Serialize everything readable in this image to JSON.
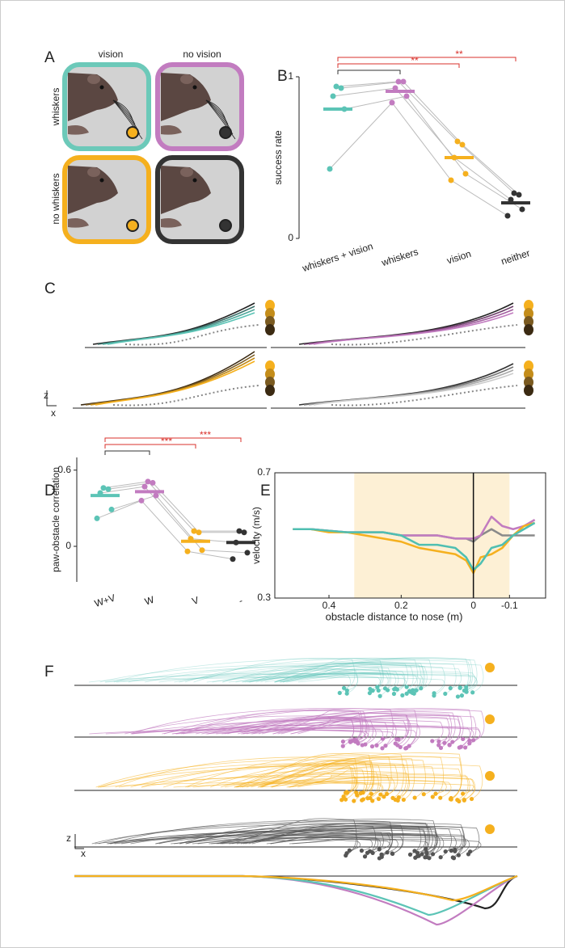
{
  "panel_labels": [
    "A",
    "B",
    "C",
    "D",
    "E",
    "F"
  ],
  "panel_a": {
    "columns": [
      "vision",
      "no vision"
    ],
    "rows": [
      "whiskers",
      "no whiskers"
    ]
  },
  "panel_c": {
    "z": "z",
    "x": "x"
  },
  "panel_f": {
    "z": "z",
    "x": "x"
  },
  "chart_data": [
    {
      "type": "strip",
      "ylabel": "success rate",
      "categories": [
        "whiskers + vision",
        "whiskers",
        "vision",
        "neither"
      ],
      "colors": [
        "#5cc4b6",
        "#c27cc0",
        "#f5b01e",
        "#333333"
      ],
      "means": [
        0.8,
        0.91,
        0.5,
        0.22
      ],
      "series": [
        {
          "values": [
            0.94,
            0.97,
            0.6,
            0.28
          ]
        },
        {
          "values": [
            0.93,
            0.97,
            0.58,
            0.27
          ]
        },
        {
          "values": [
            0.88,
            0.93,
            0.5,
            0.24
          ]
        },
        {
          "values": [
            0.8,
            0.88,
            0.4,
            0.18
          ]
        },
        {
          "values": [
            0.43,
            0.84,
            0.36,
            0.14
          ]
        }
      ],
      "ylim": [
        0,
        1
      ],
      "yticks": [
        0,
        1
      ],
      "brackets": [
        {
          "from": 0,
          "to": 1,
          "color": "#333333"
        },
        {
          "from": 0,
          "to": 2,
          "color": "#d9312b",
          "label": "**"
        },
        {
          "from": 0,
          "to": 3,
          "color": "#d9312b",
          "label": "**"
        }
      ]
    },
    {
      "type": "strip",
      "ylabel": "paw-obstacle correlation",
      "categories": [
        "W+V",
        "W",
        "V",
        "-"
      ],
      "colors": [
        "#5cc4b6",
        "#c27cc0",
        "#f5b01e",
        "#333333"
      ],
      "means": [
        0.4,
        0.43,
        0.04,
        0.03
      ],
      "series": [
        {
          "values": [
            0.46,
            0.51,
            0.12,
            0.12
          ]
        },
        {
          "values": [
            0.45,
            0.5,
            0.11,
            0.11
          ]
        },
        {
          "values": [
            0.42,
            0.47,
            0.06,
            0.03
          ]
        },
        {
          "values": [
            0.29,
            0.4,
            -0.03,
            -0.05
          ]
        },
        {
          "values": [
            0.22,
            0.36,
            -0.04,
            -0.1
          ]
        }
      ],
      "ylim": [
        -0.28,
        0.7
      ],
      "yticks": [
        0,
        0.6
      ],
      "brackets": [
        {
          "from": 0,
          "to": 1,
          "color": "#333333"
        },
        {
          "from": 0,
          "to": 2,
          "color": "#d9312b",
          "label": "***"
        },
        {
          "from": 0,
          "to": 3,
          "color": "#d9312b",
          "label": "***"
        }
      ]
    },
    {
      "type": "line",
      "xlabel": "obstacle distance to nose (m)",
      "ylabel": "velocity (m/s)",
      "x": [
        0.5,
        0.45,
        0.4,
        0.35,
        0.3,
        0.25,
        0.2,
        0.15,
        0.1,
        0.05,
        0.02,
        0,
        -0.02,
        -0.05,
        -0.08,
        -0.11,
        -0.14,
        -0.17
      ],
      "series": [
        {
          "color": "#8a8a8a",
          "values": [
            0.52,
            0.52,
            0.515,
            0.51,
            0.51,
            0.51,
            0.5,
            0.5,
            0.5,
            0.49,
            0.49,
            0.48,
            0.5,
            0.52,
            0.5,
            0.5,
            0.5,
            0.5
          ]
        },
        {
          "color": "#c27cc0",
          "values": [
            0.52,
            0.52,
            0.515,
            0.51,
            0.51,
            0.51,
            0.5,
            0.5,
            0.5,
            0.49,
            0.49,
            0.49,
            0.5,
            0.56,
            0.53,
            0.52,
            0.53,
            0.55
          ]
        },
        {
          "color": "#f5b01e",
          "values": [
            0.52,
            0.52,
            0.51,
            0.51,
            0.5,
            0.49,
            0.48,
            0.46,
            0.45,
            0.44,
            0.42,
            0.38,
            0.43,
            0.44,
            0.46,
            0.5,
            0.53,
            0.54
          ]
        },
        {
          "color": "#4fbfb2",
          "values": [
            0.52,
            0.52,
            0.515,
            0.51,
            0.51,
            0.51,
            0.5,
            0.47,
            0.47,
            0.46,
            0.43,
            0.39,
            0.41,
            0.46,
            0.47,
            0.5,
            0.52,
            0.54
          ]
        }
      ],
      "xlim": [
        0.55,
        -0.2
      ],
      "xticks": [
        0.4,
        0.2,
        0,
        -0.1
      ],
      "ylim": [
        0.3,
        0.7
      ],
      "yticks": [
        0.3,
        0.7
      ],
      "highlight_x": [
        0.33,
        -0.1
      ],
      "highlight_color": "#fdf0d5",
      "zero_line": 0
    }
  ]
}
